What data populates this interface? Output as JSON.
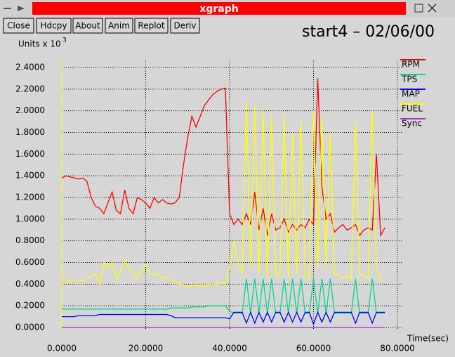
{
  "window": {
    "title": "xgraph",
    "buttons": [
      "Close",
      "Hdcpy",
      "About",
      "Anim",
      "Replot",
      "Deriv"
    ]
  },
  "chart_data": {
    "type": "line",
    "title": "start4 – 02/06/00",
    "y_label": "Units x 10",
    "y_label_exponent": "3",
    "x_label": "Time(sec)",
    "grid": true,
    "legend": "right",
    "xlim": [
      0,
      80
    ],
    "ylim": [
      -0.026,
      2.465
    ],
    "xticks": [
      {
        "value": 0,
        "label": "0.0000"
      },
      {
        "value": 20,
        "label": "20.0000"
      },
      {
        "value": 40,
        "label": "40.0000"
      },
      {
        "value": 60,
        "label": "60.0000"
      },
      {
        "value": 80,
        "label": "80.0000"
      }
    ],
    "yticks": [
      {
        "value": 0,
        "label": "0.0000"
      },
      {
        "value": 0.2,
        "label": "0.2000"
      },
      {
        "value": 0.4,
        "label": "0.4000"
      },
      {
        "value": 0.6,
        "label": "0.6000"
      },
      {
        "value": 0.8,
        "label": "0.8000"
      },
      {
        "value": 1.0,
        "label": "1.0000"
      },
      {
        "value": 1.2,
        "label": "1.2000"
      },
      {
        "value": 1.4,
        "label": "1.4000"
      },
      {
        "value": 1.6,
        "label": "1.6000"
      },
      {
        "value": 1.8,
        "label": "1.8000"
      },
      {
        "value": 2.0,
        "label": "2.0000"
      },
      {
        "value": 2.2,
        "label": "2.2000"
      },
      {
        "value": 2.4,
        "label": "2.4000"
      }
    ],
    "x": [
      0,
      1,
      2,
      3,
      4,
      5,
      6,
      7,
      8,
      9,
      10,
      11,
      12,
      13,
      14,
      15,
      16,
      17,
      18,
      19,
      20,
      21,
      22,
      23,
      24,
      25,
      26,
      27,
      28,
      29,
      30,
      31,
      32,
      33,
      34,
      35,
      36,
      37,
      38,
      39,
      40,
      41,
      42,
      43,
      44,
      45,
      46,
      47,
      48,
      49,
      50,
      51,
      52,
      53,
      54,
      55,
      56,
      57,
      58,
      59,
      60,
      61,
      62,
      63,
      64,
      65,
      66,
      67,
      68,
      69,
      70,
      71,
      72,
      73,
      74,
      75,
      76,
      77
    ],
    "series": [
      {
        "name": "RPM",
        "color": "#ff0000",
        "values": [
          1.38,
          1.4,
          1.39,
          1.38,
          1.37,
          1.38,
          1.35,
          1.2,
          1.12,
          1.1,
          1.05,
          1.15,
          1.25,
          1.08,
          1.05,
          1.27,
          1.1,
          1.05,
          1.2,
          1.18,
          1.15,
          1.1,
          1.2,
          1.15,
          1.18,
          1.15,
          1.14,
          1.15,
          1.2,
          1.5,
          1.75,
          1.95,
          1.85,
          1.95,
          2.05,
          2.1,
          2.15,
          2.18,
          2.2,
          2.21,
          1.05,
          0.95,
          1.0,
          0.95,
          1.05,
          0.95,
          1.25,
          0.9,
          1.1,
          0.85,
          1.05,
          0.9,
          0.92,
          1.0,
          0.88,
          0.95,
          0.9,
          0.95,
          0.92,
          1.0,
          0.95,
          2.3,
          1.3,
          1.0,
          1.05,
          0.88,
          0.92,
          0.95,
          0.9,
          0.92,
          0.95,
          0.85,
          0.9,
          0.92,
          0.9,
          1.6,
          0.85,
          0.92
        ]
      },
      {
        "name": "TPS",
        "color": "#00d890",
        "values": [
          0.17,
          0.17,
          0.17,
          0.17,
          0.17,
          0.17,
          0.17,
          0.17,
          0.17,
          0.17,
          0.17,
          0.17,
          0.17,
          0.17,
          0.17,
          0.17,
          0.17,
          0.17,
          0.17,
          0.17,
          0.17,
          0.17,
          0.17,
          0.17,
          0.17,
          0.17,
          0.18,
          0.18,
          0.18,
          0.18,
          0.18,
          0.19,
          0.19,
          0.19,
          0.19,
          0.2,
          0.2,
          0.2,
          0.2,
          0.2,
          0.15,
          0.13,
          0.13,
          0.13,
          0.45,
          0.13,
          0.45,
          0.13,
          0.45,
          0.13,
          0.45,
          0.13,
          0.13,
          0.45,
          0.13,
          0.45,
          0.13,
          0.45,
          0.13,
          0.13,
          0.45,
          0.13,
          0.45,
          0.13,
          0.45,
          0.13,
          0.13,
          0.13,
          0.13,
          0.13,
          0.45,
          0.13,
          0.13,
          0.13,
          0.45,
          0.13,
          0.13,
          0.13
        ]
      },
      {
        "name": "MAP",
        "color": "#0000ff",
        "values": [
          0.1,
          0.1,
          0.1,
          0.1,
          0.11,
          0.11,
          0.11,
          0.11,
          0.11,
          0.12,
          0.12,
          0.12,
          0.12,
          0.12,
          0.12,
          0.12,
          0.12,
          0.12,
          0.12,
          0.12,
          0.12,
          0.12,
          0.12,
          0.12,
          0.12,
          0.12,
          0.11,
          0.09,
          0.09,
          0.09,
          0.09,
          0.09,
          0.09,
          0.09,
          0.09,
          0.09,
          0.09,
          0.09,
          0.09,
          0.09,
          0.08,
          0.14,
          0.14,
          0.14,
          0.04,
          0.14,
          0.04,
          0.14,
          0.05,
          0.14,
          0.05,
          0.14,
          0.14,
          0.05,
          0.14,
          0.05,
          0.14,
          0.05,
          0.14,
          0.14,
          0.03,
          0.14,
          0.05,
          0.14,
          0.05,
          0.14,
          0.14,
          0.14,
          0.14,
          0.14,
          0.04,
          0.14,
          0.14,
          0.14,
          0.04,
          0.14,
          0.14,
          0.14
        ]
      },
      {
        "name": "FUEL",
        "color": "#ffff00",
        "values": [
          0.46,
          0.44,
          0.42,
          0.44,
          0.43,
          0.43,
          0.45,
          0.48,
          0.5,
          0.4,
          0.6,
          0.55,
          0.6,
          0.45,
          0.52,
          0.62,
          0.55,
          0.5,
          0.45,
          0.52,
          0.58,
          0.5,
          0.48,
          0.5,
          0.45,
          0.47,
          0.44,
          0.43,
          0.4,
          0.39,
          0.38,
          0.38,
          0.39,
          0.38,
          0.39,
          0.4,
          0.39,
          0.4,
          0.41,
          0.4,
          0.55,
          0.8,
          0.6,
          0.5,
          2.1,
          0.55,
          2.05,
          0.5,
          2.0,
          0.45,
          1.95,
          0.48,
          0.5,
          1.95,
          0.45,
          1.8,
          0.5,
          1.9,
          0.48,
          0.45,
          2.0,
          0.55,
          1.95,
          0.55,
          1.8,
          0.5,
          0.48,
          0.45,
          0.48,
          0.45,
          1.9,
          0.5,
          0.48,
          0.45,
          2.0,
          0.55,
          0.45,
          0.42
        ]
      },
      {
        "name": "Sync",
        "color": "#9933cc",
        "values": [
          0,
          0,
          0,
          0,
          0,
          0,
          0,
          0,
          0,
          0,
          0,
          0,
          0,
          0,
          0,
          0,
          0,
          0,
          0,
          0,
          0,
          0,
          0,
          0,
          0,
          0,
          0,
          0,
          0,
          0,
          0,
          0,
          0,
          0,
          0,
          0,
          0,
          0,
          0,
          0,
          0,
          0,
          0,
          0,
          0,
          0,
          0,
          0,
          0,
          0,
          0,
          0,
          0,
          0,
          0,
          0,
          0,
          0,
          0,
          0,
          0,
          0,
          0,
          0,
          0,
          0,
          0,
          0,
          0,
          0,
          0,
          0,
          0,
          0,
          0,
          0,
          0,
          0
        ]
      }
    ]
  }
}
